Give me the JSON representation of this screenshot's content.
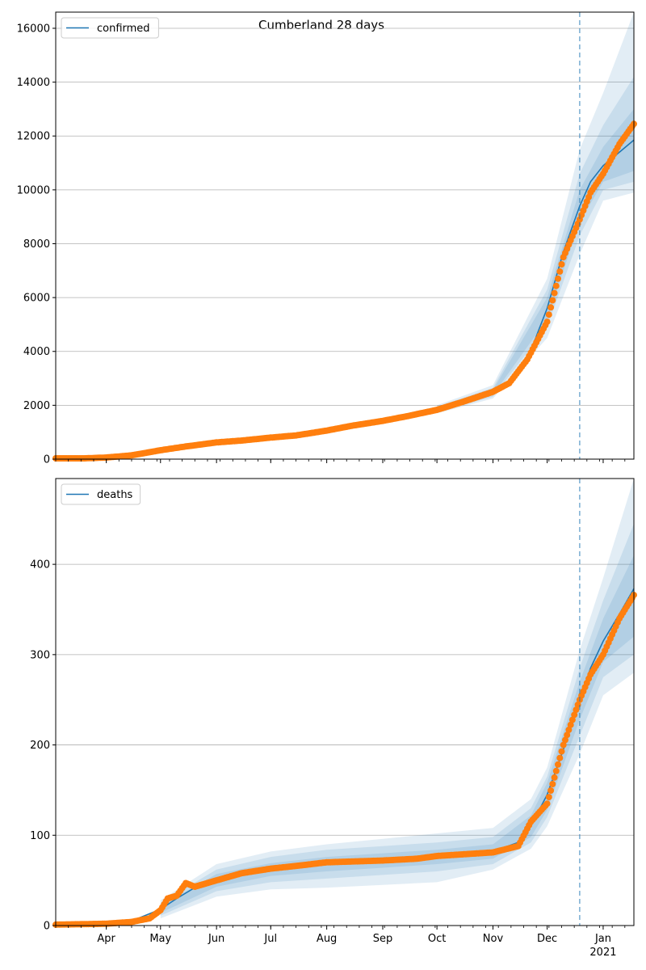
{
  "figure": {
    "title": "Cumberland 28 days"
  },
  "chart_data": [
    {
      "type": "line",
      "title": "Cumberland 28 days",
      "legend": {
        "label": "confirmed",
        "placement": "top-left"
      },
      "x_domain": [
        "2020-03-04",
        "2021-01-18"
      ],
      "forecast_start": "2020-12-19",
      "ylim": [
        0,
        16600
      ],
      "yticks": [
        0,
        2000,
        4000,
        6000,
        8000,
        10000,
        12000,
        14000,
        16000
      ],
      "grid": "y",
      "colors": {
        "model": "#1f77b4",
        "observed": "#ff7f0e",
        "band": "#1f77b4",
        "vline": "#1f77b4"
      },
      "model": [
        [
          "2020-03-04",
          30
        ],
        [
          "2020-03-20",
          35
        ],
        [
          "2020-04-01",
          70
        ],
        [
          "2020-04-15",
          160
        ],
        [
          "2020-05-01",
          330
        ],
        [
          "2020-05-15",
          480
        ],
        [
          "2020-06-01",
          620
        ],
        [
          "2020-06-15",
          700
        ],
        [
          "2020-07-01",
          790
        ],
        [
          "2020-07-15",
          880
        ],
        [
          "2020-08-01",
          1050
        ],
        [
          "2020-08-15",
          1230
        ],
        [
          "2020-09-01",
          1430
        ],
        [
          "2020-09-15",
          1620
        ],
        [
          "2020-10-01",
          1840
        ],
        [
          "2020-10-15",
          2100
        ],
        [
          "2020-11-01",
          2480
        ],
        [
          "2020-11-10",
          2900
        ],
        [
          "2020-11-20",
          3700
        ],
        [
          "2020-12-01",
          5600
        ],
        [
          "2020-12-10",
          7700
        ],
        [
          "2020-12-19",
          9400
        ],
        [
          "2020-12-25",
          10300
        ],
        [
          "2021-01-01",
          10900
        ],
        [
          "2021-01-10",
          11400
        ],
        [
          "2021-01-18",
          11850
        ]
      ],
      "bands": [
        [
          [
            "2020-10-01",
            1700,
            2000
          ],
          [
            "2020-11-01",
            2250,
            2750
          ],
          [
            "2020-12-01",
            4500,
            6700
          ],
          [
            "2020-12-19",
            7600,
            11500
          ],
          [
            "2021-01-01",
            9600,
            13600
          ],
          [
            "2021-01-18",
            9900,
            16600
          ]
        ],
        [
          [
            "2020-10-01",
            1750,
            1950
          ],
          [
            "2020-11-01",
            2320,
            2650
          ],
          [
            "2020-12-01",
            4900,
            6300
          ],
          [
            "2020-12-19",
            8300,
            10600
          ],
          [
            "2021-01-01",
            10000,
            12400
          ],
          [
            "2021-01-18",
            10300,
            14200
          ]
        ],
        [
          [
            "2020-10-01",
            1790,
            1900
          ],
          [
            "2020-11-01",
            2390,
            2570
          ],
          [
            "2020-12-01",
            5200,
            6000
          ],
          [
            "2020-12-19",
            8800,
            10000
          ],
          [
            "2021-01-01",
            10300,
            11600
          ],
          [
            "2021-01-18",
            10700,
            13000
          ]
        ]
      ],
      "observed": [
        [
          "2020-03-04",
          30
        ],
        [
          "2020-03-20",
          30
        ],
        [
          "2020-04-01",
          60
        ],
        [
          "2020-04-15",
          140
        ],
        [
          "2020-05-01",
          330
        ],
        [
          "2020-05-15",
          470
        ],
        [
          "2020-06-01",
          620
        ],
        [
          "2020-06-15",
          690
        ],
        [
          "2020-07-01",
          800
        ],
        [
          "2020-07-15",
          880
        ],
        [
          "2020-08-01",
          1060
        ],
        [
          "2020-08-15",
          1240
        ],
        [
          "2020-09-01",
          1420
        ],
        [
          "2020-09-15",
          1600
        ],
        [
          "2020-10-01",
          1830
        ],
        [
          "2020-10-15",
          2120
        ],
        [
          "2020-11-01",
          2500
        ],
        [
          "2020-11-10",
          2820
        ],
        [
          "2020-11-20",
          3700
        ],
        [
          "2020-12-01",
          5100
        ],
        [
          "2020-12-10",
          7500
        ],
        [
          "2020-12-19",
          8900
        ],
        [
          "2020-12-25",
          9900
        ],
        [
          "2021-01-01",
          10600
        ],
        [
          "2021-01-10",
          11700
        ],
        [
          "2021-01-18",
          12450
        ]
      ]
    },
    {
      "type": "line",
      "legend": {
        "label": "deaths",
        "placement": "top-left"
      },
      "x_domain": [
        "2020-03-04",
        "2021-01-18"
      ],
      "forecast_start": "2020-12-19",
      "ylim": [
        0,
        495
      ],
      "yticks": [
        0,
        100,
        200,
        300,
        400
      ],
      "grid": "y",
      "colors": {
        "model": "#1f77b4",
        "observed": "#ff7f0e",
        "band": "#1f77b4",
        "vline": "#1f77b4"
      },
      "xticks": [
        {
          "date": "2020-04-01",
          "label": "Apr"
        },
        {
          "date": "2020-05-01",
          "label": "May"
        },
        {
          "date": "2020-06-01",
          "label": "Jun"
        },
        {
          "date": "2020-07-01",
          "label": "Jul"
        },
        {
          "date": "2020-08-01",
          "label": "Aug"
        },
        {
          "date": "2020-09-01",
          "label": "Sep"
        },
        {
          "date": "2020-10-01",
          "label": "Oct"
        },
        {
          "date": "2020-11-01",
          "label": "Nov"
        },
        {
          "date": "2020-12-01",
          "label": "Dec"
        },
        {
          "date": "2021-01-01",
          "label": "Jan",
          "year": "2021"
        }
      ],
      "model": [
        [
          "2020-03-04",
          1
        ],
        [
          "2020-04-01",
          2
        ],
        [
          "2020-04-15",
          5
        ],
        [
          "2020-05-01",
          18
        ],
        [
          "2020-05-10",
          30
        ],
        [
          "2020-05-20",
          42
        ],
        [
          "2020-06-01",
          50
        ],
        [
          "2020-06-15",
          57
        ],
        [
          "2020-07-01",
          62
        ],
        [
          "2020-07-15",
          65
        ],
        [
          "2020-08-01",
          68
        ],
        [
          "2020-09-01",
          72
        ],
        [
          "2020-10-01",
          76
        ],
        [
          "2020-11-01",
          82
        ],
        [
          "2020-11-15",
          92
        ],
        [
          "2020-11-22",
          110
        ],
        [
          "2020-12-01",
          145
        ],
        [
          "2020-12-10",
          195
        ],
        [
          "2020-12-19",
          250
        ],
        [
          "2020-12-25",
          285
        ],
        [
          "2021-01-01",
          315
        ],
        [
          "2021-01-10",
          345
        ],
        [
          "2021-01-18",
          373
        ]
      ],
      "bands": [
        [
          [
            "2020-05-01",
            8,
            28
          ],
          [
            "2020-06-01",
            32,
            68
          ],
          [
            "2020-07-01",
            40,
            82
          ],
          [
            "2020-08-01",
            42,
            90
          ],
          [
            "2020-09-01",
            45,
            96
          ],
          [
            "2020-10-01",
            48,
            102
          ],
          [
            "2020-11-01",
            62,
            108
          ],
          [
            "2020-11-22",
            85,
            140
          ],
          [
            "2020-12-01",
            110,
            175
          ],
          [
            "2020-12-19",
            190,
            305
          ],
          [
            "2021-01-01",
            255,
            385
          ],
          [
            "2021-01-18",
            280,
            495
          ]
        ],
        [
          [
            "2020-05-01",
            11,
            25
          ],
          [
            "2020-06-01",
            38,
            62
          ],
          [
            "2020-07-01",
            48,
            76
          ],
          [
            "2020-08-01",
            52,
            84
          ],
          [
            "2020-09-01",
            56,
            88
          ],
          [
            "2020-10-01",
            60,
            92
          ],
          [
            "2020-11-01",
            68,
            98
          ],
          [
            "2020-11-22",
            92,
            130
          ],
          [
            "2020-12-01",
            120,
            165
          ],
          [
            "2020-12-19",
            210,
            285
          ],
          [
            "2021-01-01",
            275,
            360
          ],
          [
            "2021-01-18",
            300,
            445
          ]
        ],
        [
          [
            "2020-05-01",
            14,
            22
          ],
          [
            "2020-06-01",
            43,
            57
          ],
          [
            "2020-07-01",
            55,
            69
          ],
          [
            "2020-08-01",
            60,
            76
          ],
          [
            "2020-09-01",
            64,
            80
          ],
          [
            "2020-10-01",
            68,
            84
          ],
          [
            "2020-11-01",
            74,
            90
          ],
          [
            "2020-11-22",
            98,
            122
          ],
          [
            "2020-12-01",
            128,
            158
          ],
          [
            "2020-12-19",
            228,
            270
          ],
          [
            "2021-01-01",
            292,
            340
          ],
          [
            "2021-01-18",
            320,
            410
          ]
        ]
      ],
      "observed": [
        [
          "2020-03-04",
          1
        ],
        [
          "2020-04-01",
          2
        ],
        [
          "2020-04-15",
          4
        ],
        [
          "2020-04-25",
          8
        ],
        [
          "2020-05-01",
          17
        ],
        [
          "2020-05-05",
          30
        ],
        [
          "2020-05-10",
          33
        ],
        [
          "2020-05-15",
          47
        ],
        [
          "2020-05-20",
          43
        ],
        [
          "2020-06-01",
          50
        ],
        [
          "2020-06-15",
          58
        ],
        [
          "2020-07-01",
          63
        ],
        [
          "2020-07-15",
          66
        ],
        [
          "2020-08-01",
          70
        ],
        [
          "2020-09-01",
          72
        ],
        [
          "2020-09-20",
          74
        ],
        [
          "2020-10-01",
          77
        ],
        [
          "2020-11-01",
          81
        ],
        [
          "2020-11-15",
          88
        ],
        [
          "2020-11-22",
          115
        ],
        [
          "2020-12-01",
          135
        ],
        [
          "2020-12-10",
          200
        ],
        [
          "2020-12-19",
          250
        ],
        [
          "2020-12-25",
          278
        ],
        [
          "2021-01-01",
          300
        ],
        [
          "2021-01-10",
          340
        ],
        [
          "2021-01-18",
          366
        ]
      ]
    }
  ]
}
